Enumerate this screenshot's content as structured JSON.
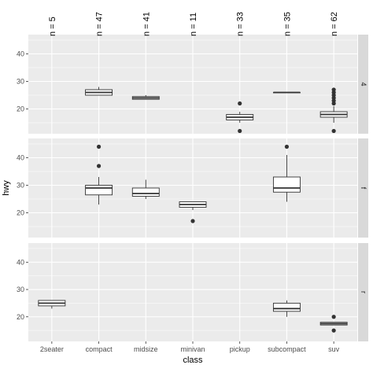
{
  "chart_data": {
    "type": "boxplot",
    "xlabel": "class",
    "ylabel": "hwy",
    "categories": [
      "2seater",
      "compact",
      "midsize",
      "minivan",
      "pickup",
      "subcompact",
      "suv"
    ],
    "counts": [
      "n = 5",
      "n = 47",
      "n = 41",
      "n = 11",
      "n = 33",
      "n = 35",
      "n = 62"
    ],
    "ylim": [
      11,
      47
    ],
    "y_ticks": [
      20,
      30,
      40
    ],
    "grid": true,
    "facets": [
      {
        "strip": "4",
        "boxes": [
          {
            "category": "compact",
            "lower_whisker": 25,
            "q1": 25,
            "median": 26,
            "q3": 27,
            "upper_whisker": 28,
            "outliers": []
          },
          {
            "category": "midsize",
            "lower_whisker": 23.5,
            "q1": 23.5,
            "median": 24,
            "q3": 24.5,
            "upper_whisker": 25,
            "outliers": []
          },
          {
            "category": "pickup",
            "lower_whisker": 15,
            "q1": 16,
            "median": 17,
            "q3": 18,
            "upper_whisker": 19,
            "outliers": [
              12,
              22
            ]
          },
          {
            "category": "subcompact",
            "lower_whisker": 26,
            "q1": 26,
            "median": 26,
            "q3": 26,
            "upper_whisker": 26,
            "outliers": []
          },
          {
            "category": "suv",
            "lower_whisker": 15,
            "q1": 17,
            "median": 18,
            "q3": 19,
            "upper_whisker": 21,
            "outliers": [
              12,
              22,
              23,
              24,
              25,
              26,
              27
            ]
          }
        ]
      },
      {
        "strip": "f",
        "boxes": [
          {
            "category": "compact",
            "lower_whisker": 23,
            "q1": 26.5,
            "median": 29,
            "q3": 30,
            "upper_whisker": 33,
            "outliers": [
              37,
              44
            ]
          },
          {
            "category": "midsize",
            "lower_whisker": 25,
            "q1": 26,
            "median": 27,
            "q3": 29,
            "upper_whisker": 32,
            "outliers": []
          },
          {
            "category": "minivan",
            "lower_whisker": 21,
            "q1": 22,
            "median": 23,
            "q3": 24,
            "upper_whisker": 24,
            "outliers": [
              17
            ]
          },
          {
            "category": "subcompact",
            "lower_whisker": 24,
            "q1": 27.5,
            "median": 29,
            "q3": 33,
            "upper_whisker": 41,
            "outliers": [
              44
            ]
          }
        ]
      },
      {
        "strip": "r",
        "boxes": [
          {
            "category": "2seater",
            "lower_whisker": 23,
            "q1": 24,
            "median": 25,
            "q3": 26,
            "upper_whisker": 26,
            "outliers": []
          },
          {
            "category": "subcompact",
            "lower_whisker": 20,
            "q1": 22,
            "median": 23,
            "q3": 25,
            "upper_whisker": 26,
            "outliers": []
          },
          {
            "category": "suv",
            "lower_whisker": 17,
            "q1": 17,
            "median": 17.5,
            "q3": 18,
            "upper_whisker": 18,
            "outliers": [
              15,
              20
            ]
          }
        ]
      }
    ]
  },
  "colors": {
    "panel_bg": "#ebebeb",
    "grid": "#ffffff",
    "strip_bg": "#d9d9d9",
    "box_fill": "#ffffff",
    "box_stroke": "#333333"
  }
}
